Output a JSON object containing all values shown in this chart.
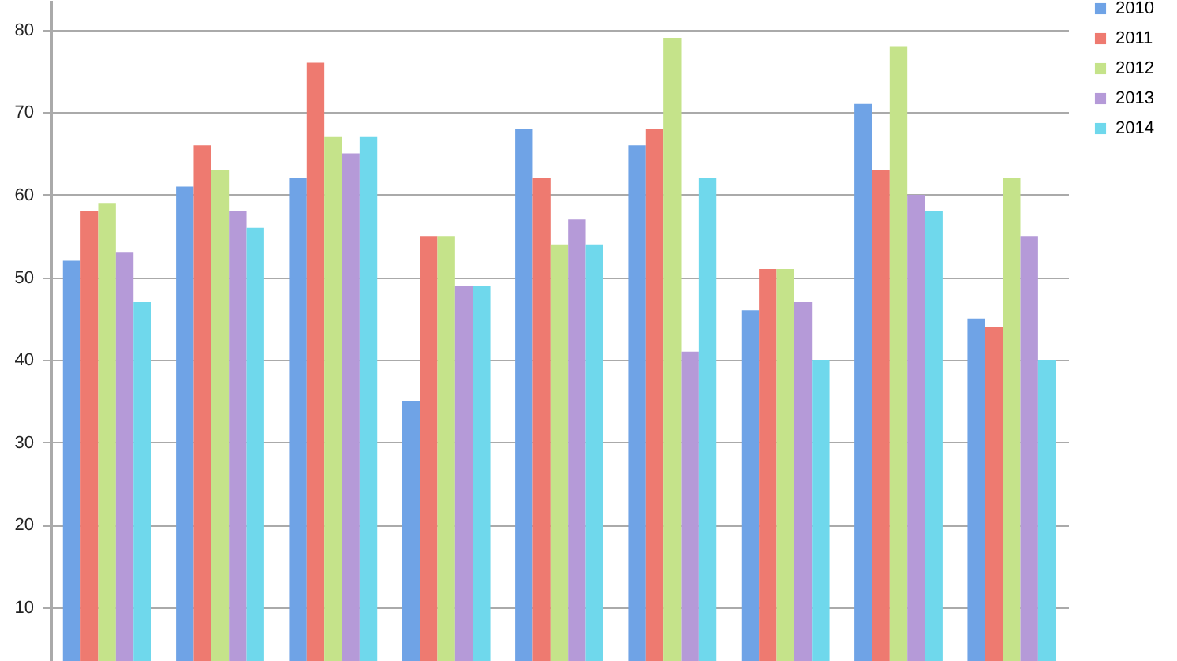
{
  "chart_data": {
    "type": "bar",
    "categories": [
      null,
      null,
      null,
      null,
      null,
      null,
      null,
      null,
      null
    ],
    "series": [
      {
        "name": "2010",
        "color": "#6fa3e6",
        "values": [
          52,
          61,
          62,
          35,
          68,
          66,
          46,
          71,
          45
        ]
      },
      {
        "name": "2011",
        "color": "#ee7a70",
        "values": [
          58,
          66,
          76,
          55,
          62,
          68,
          51,
          63,
          44
        ]
      },
      {
        "name": "2012",
        "color": "#c5e38a",
        "values": [
          59,
          63,
          67,
          55,
          54,
          79,
          51,
          78,
          62
        ]
      },
      {
        "name": "2013",
        "color": "#b59ad8",
        "values": [
          53,
          58,
          65,
          49,
          57,
          41,
          47,
          60,
          55
        ]
      },
      {
        "name": "2014",
        "color": "#6fd8ec",
        "values": [
          47,
          56,
          67,
          49,
          54,
          62,
          40,
          58,
          40
        ]
      }
    ],
    "ylim": [
      3.5,
      83.6
    ],
    "yticks": [
      10,
      20,
      30,
      40,
      50,
      60,
      70,
      80
    ],
    "grid": "y",
    "legend": "right",
    "tick_labels": "y"
  }
}
